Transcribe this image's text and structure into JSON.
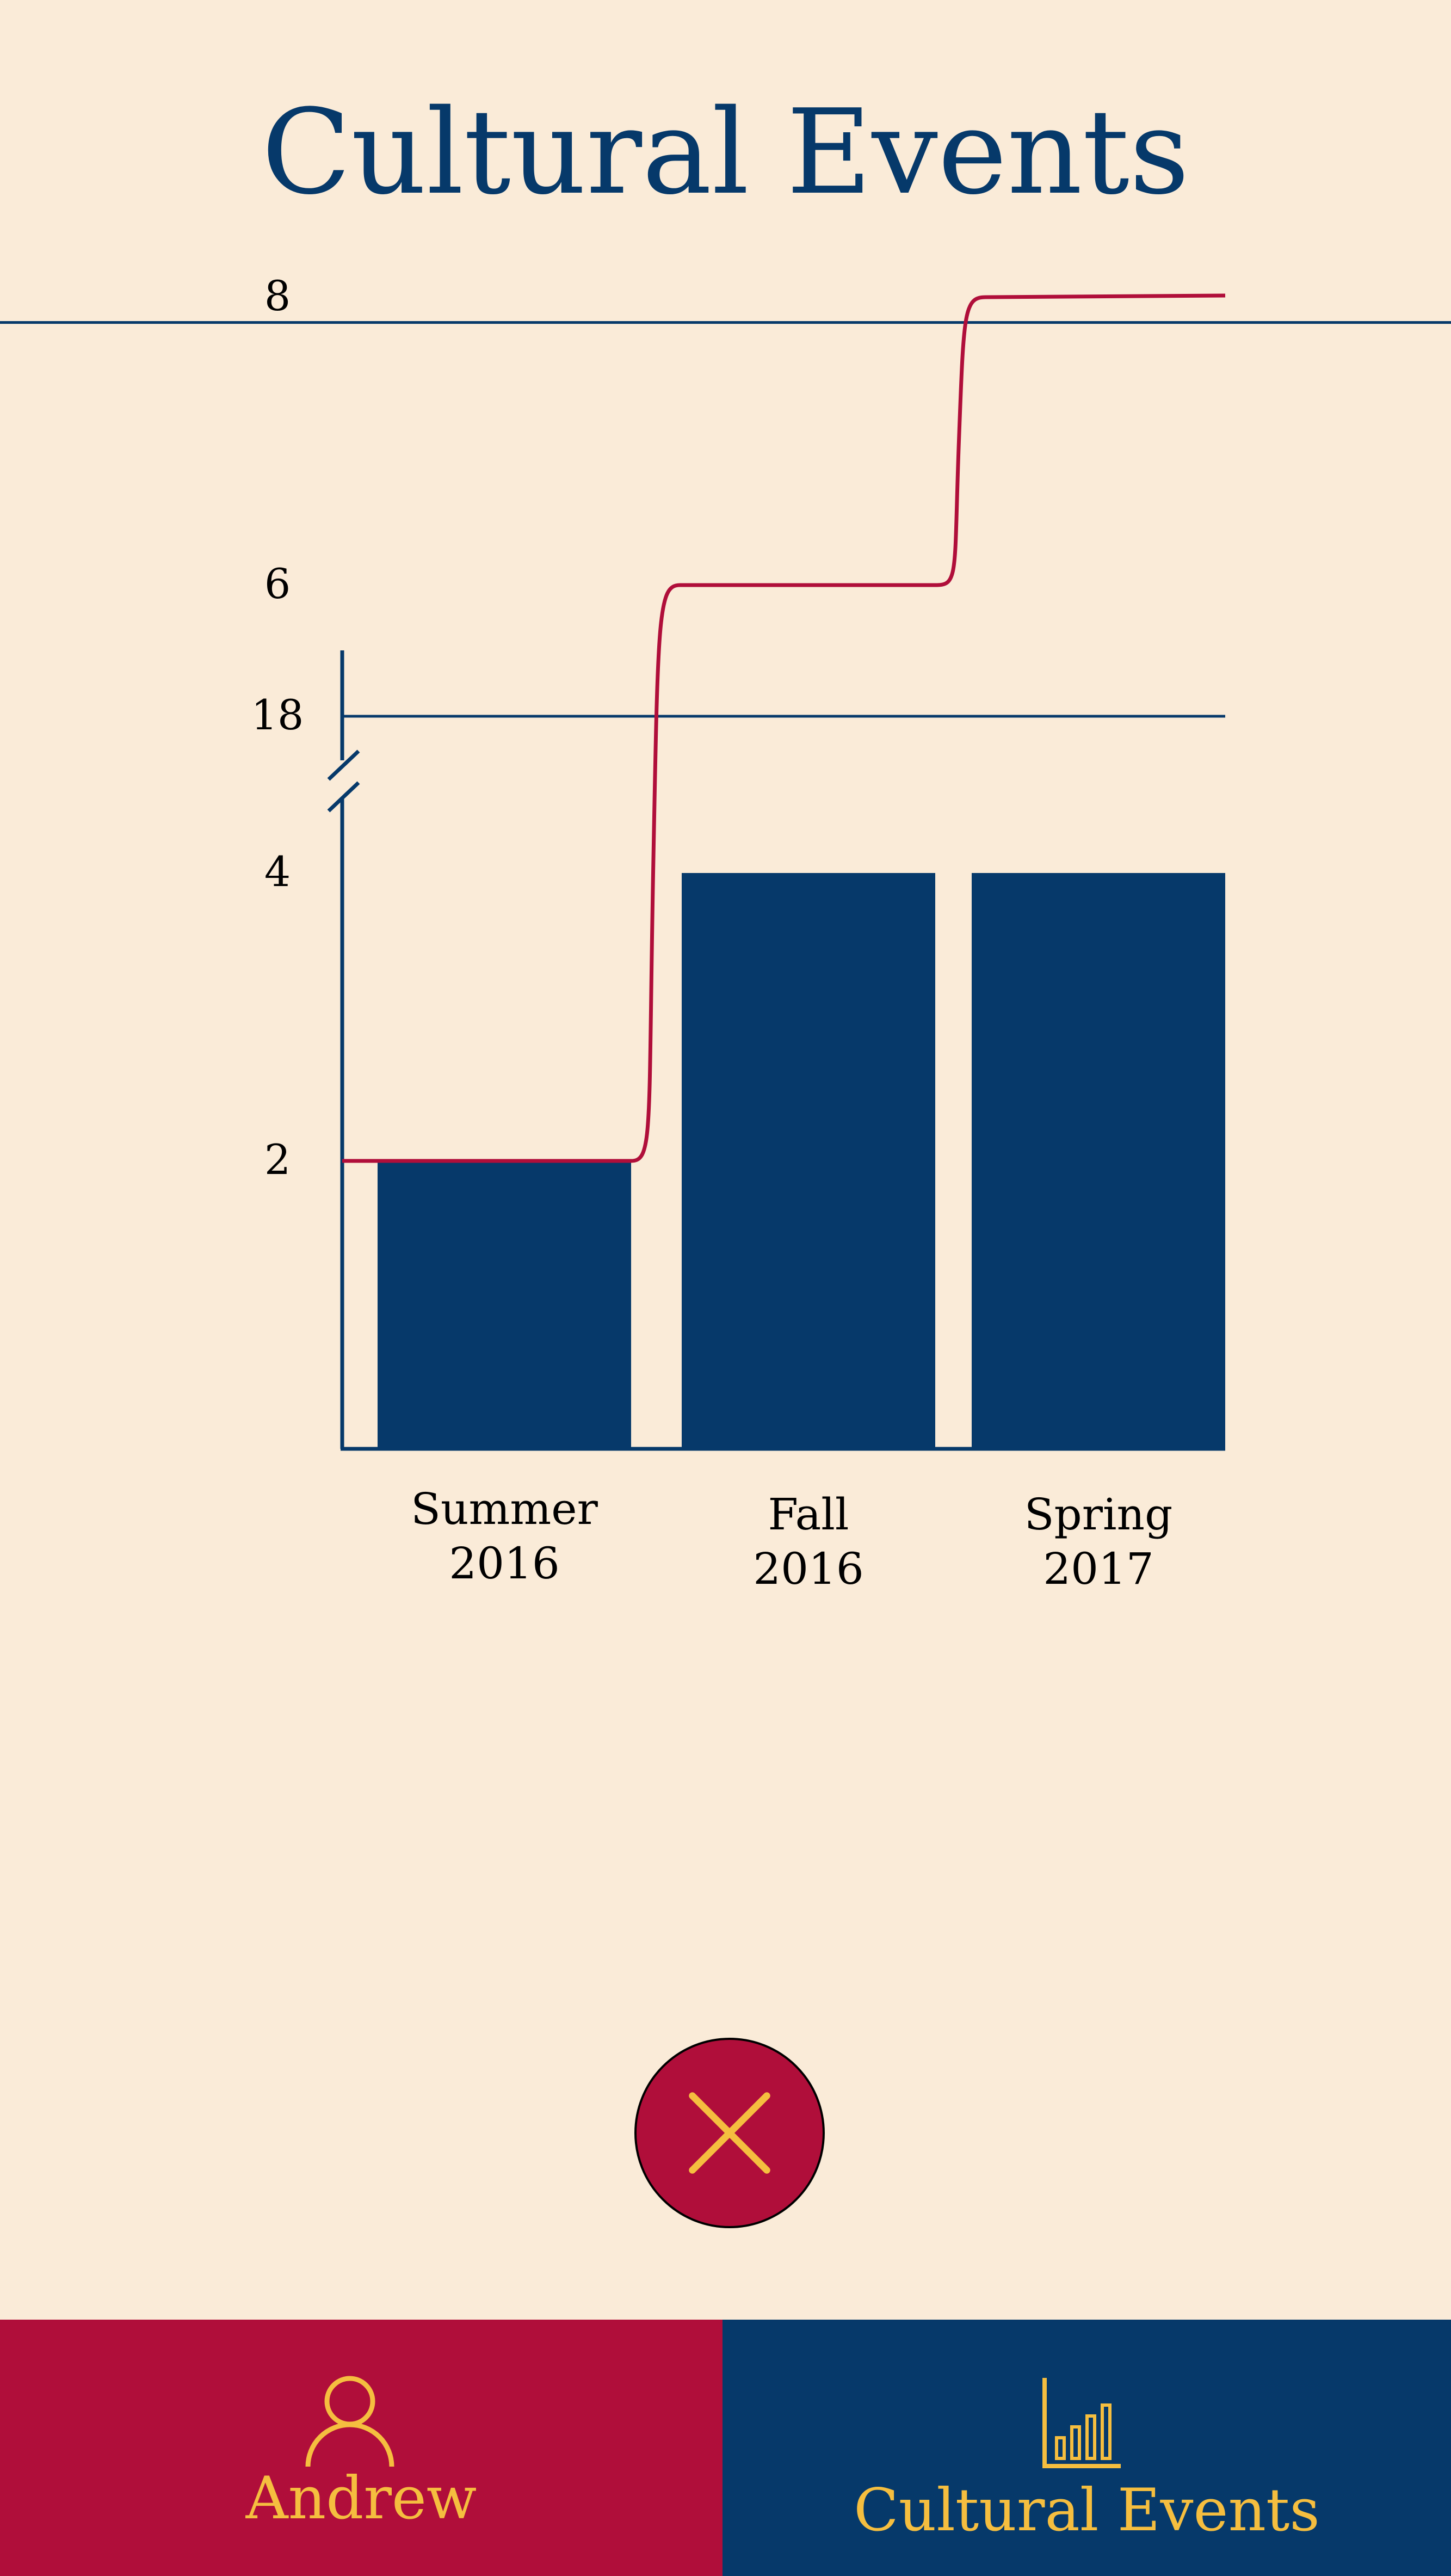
{
  "header": {
    "title": "Cultural Events"
  },
  "chart_data": {
    "type": "bar",
    "categories": [
      "Summer\n2016",
      "Fall\n2016",
      "Spring\n2017"
    ],
    "category_lines": [
      [
        "Summer",
        "2016"
      ],
      [
        "Fall",
        "2016"
      ],
      [
        "Spring",
        "2017"
      ]
    ],
    "values": [
      2,
      4,
      4
    ],
    "line_series": {
      "type": "step-line",
      "values": [
        2,
        6,
        8
      ]
    },
    "target_line": {
      "value": 18
    },
    "y_ticks": [
      "2",
      "4",
      "6",
      "8",
      "18"
    ],
    "y_tick_values": [
      2,
      4,
      6,
      8,
      18
    ],
    "axis_break": true,
    "title": "",
    "xlabel": "",
    "ylabel": "",
    "ylim": [
      0,
      18
    ],
    "grid": false,
    "colors": {
      "bar": "#06396A",
      "line": "#B00E3A",
      "axis": "#06396A",
      "text": "#000000"
    }
  },
  "close_button": {
    "icon": "close-icon"
  },
  "bottom_nav": {
    "items": [
      {
        "label": "Andrew",
        "icon": "user-icon"
      },
      {
        "label": "Cultural Events",
        "icon": "bar-chart-icon"
      }
    ]
  },
  "colors": {
    "background": "#FAEBD8",
    "navy": "#06396A",
    "crimson": "#B00E3A",
    "gold": "#F5BE3F"
  }
}
